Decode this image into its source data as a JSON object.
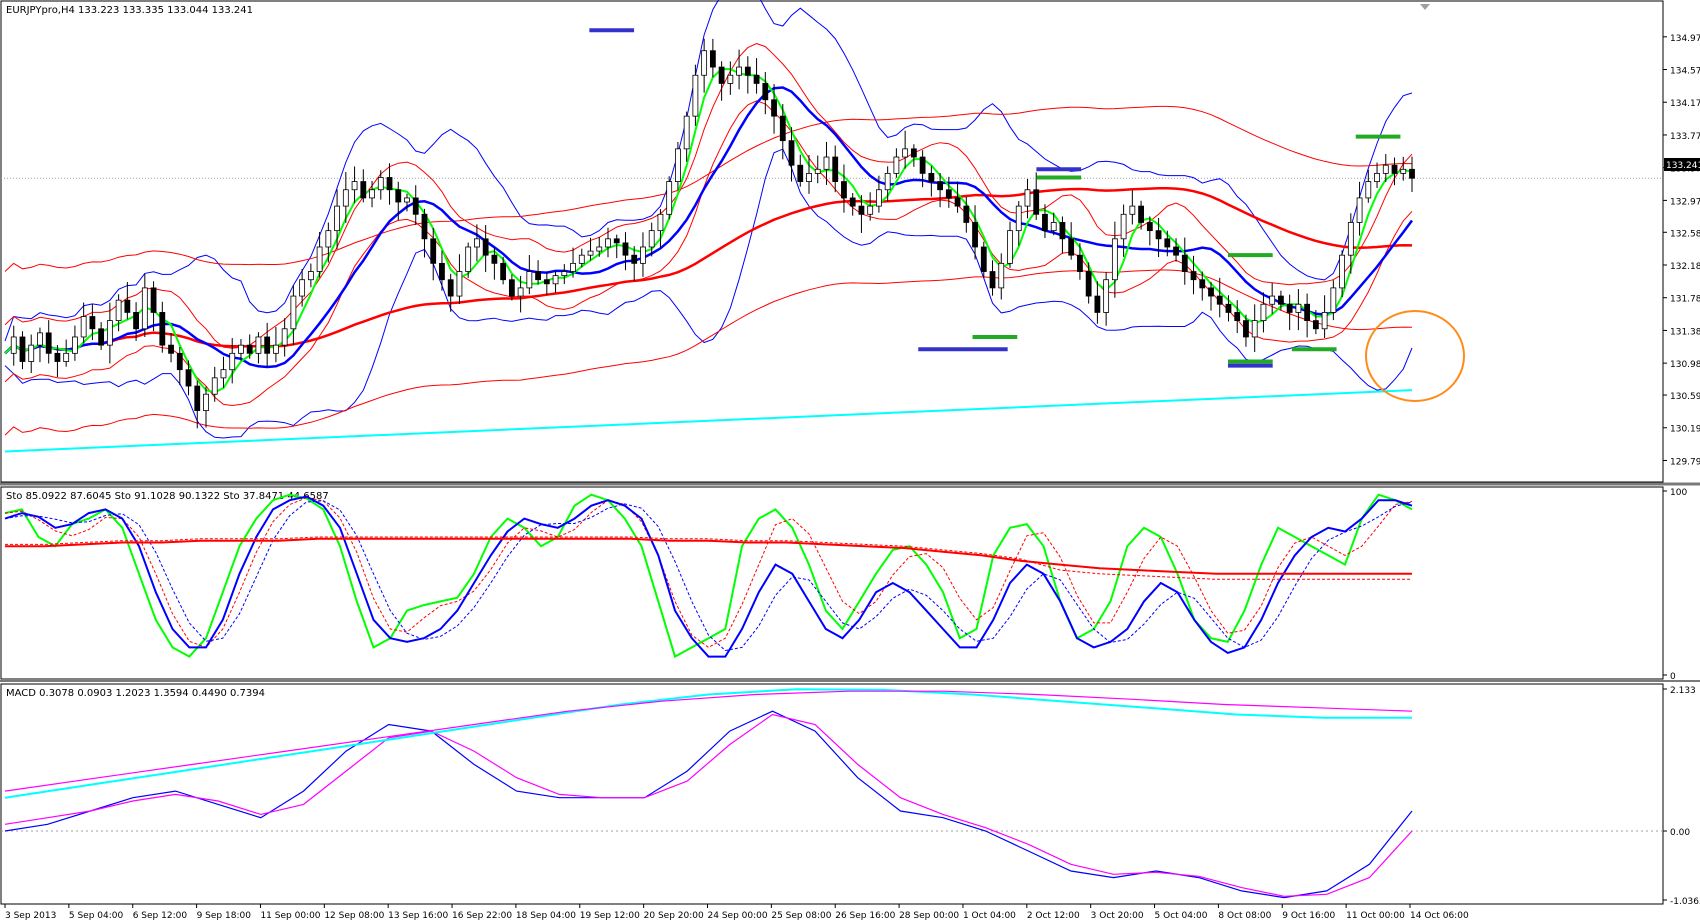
{
  "colors": {
    "frame": "#000000",
    "bull_fill": "#ffffff",
    "bear_fill": "#000000",
    "red_thin": "#ff0000",
    "red_thick": "#ff0000",
    "blue": "#0000ff",
    "green": "#00ff00",
    "cyan": "#00ffff",
    "magenta": "#ff00ff",
    "marker_blue": "#3333cc",
    "marker_green": "#22aa22",
    "circle": "#ff8c1a",
    "grid_dash": "#a0a0a0"
  },
  "chart_data": [
    {
      "panel": "price",
      "type": "candlestick",
      "header": "EURJPYpro,H4  133.223 133.335 133.044 133.241",
      "current_price_tag": "133.241",
      "ylim": [
        129.6,
        135.2
      ],
      "y_ticks": [
        "134.970",
        "134.570",
        "134.170",
        "133.770",
        "133.370",
        "132.970",
        "132.580",
        "132.180",
        "131.780",
        "131.380",
        "130.980",
        "130.590",
        "130.190",
        "129.790"
      ],
      "x_labels": [
        "3 Sep 2013",
        "5 Sep 04:00",
        "6 Sep 12:00",
        "9 Sep 18:00",
        "11 Sep 00:00",
        "12 Sep 08:00",
        "13 Sep 16:00",
        "16 Sep 22:00",
        "18 Sep 04:00",
        "19 Sep 12:00",
        "20 Sep 20:00",
        "24 Sep 00:00",
        "25 Sep 08:00",
        "26 Sep 16:00",
        "28 Sep 00:00",
        "1 Oct 04:00",
        "2 Oct 12:00",
        "3 Oct 20:00",
        "5 Oct 04:00",
        "8 Oct 08:00",
        "9 Oct 16:00",
        "11 Oct 00:00",
        "14 Oct 06:00"
      ],
      "candle_path": [
        131.1,
        131.3,
        131.0,
        131.2,
        131.35,
        131.1,
        131.0,
        131.1,
        131.3,
        131.55,
        131.4,
        131.2,
        131.5,
        131.75,
        131.6,
        131.4,
        131.9,
        131.6,
        131.2,
        131.1,
        130.9,
        130.7,
        130.4,
        130.6,
        130.8,
        130.9,
        131.1,
        131.2,
        131.1,
        131.3,
        131.1,
        131.2,
        131.4,
        131.8,
        132.0,
        132.1,
        132.4,
        132.6,
        132.9,
        133.1,
        133.2,
        133.0,
        133.1,
        133.25,
        133.1,
        132.95,
        133.0,
        132.8,
        132.5,
        132.2,
        132.0,
        131.8,
        132.1,
        132.4,
        132.5,
        132.3,
        132.2,
        132.0,
        131.8,
        131.9,
        132.1,
        132.0,
        131.95,
        132.05,
        132.1,
        132.2,
        132.3,
        132.35,
        132.4,
        132.5,
        132.45,
        132.3,
        132.2,
        132.4,
        132.6,
        132.8,
        133.2,
        133.6,
        134.0,
        134.5,
        134.8,
        134.6,
        134.4,
        134.5,
        134.6,
        134.5,
        134.4,
        134.2,
        134.0,
        133.7,
        133.4,
        133.2,
        133.3,
        133.35,
        133.5,
        133.2,
        133.0,
        132.9,
        132.8,
        132.9,
        133.1,
        133.3,
        133.5,
        133.6,
        133.5,
        133.3,
        133.2,
        133.1,
        133.0,
        132.9,
        132.7,
        132.4,
        132.1,
        131.9,
        132.2,
        132.6,
        132.9,
        133.1,
        132.8,
        132.6,
        132.7,
        132.5,
        132.3,
        132.1,
        131.8,
        131.6,
        132.0,
        132.5,
        132.8,
        132.9,
        132.7,
        132.6,
        132.5,
        132.4,
        132.3,
        132.1,
        132.0,
        131.9,
        131.8,
        131.7,
        131.6,
        131.5,
        131.3,
        131.5,
        131.7,
        131.8,
        131.7,
        131.6,
        131.7,
        131.5,
        131.4,
        131.6,
        131.9,
        132.3,
        132.7,
        133.0,
        133.2,
        133.3,
        133.4,
        133.3,
        133.35,
        133.241
      ],
      "indicators": {
        "ma_green_fast": "green",
        "ma_blue": "blue",
        "ma_red_slow": "red",
        "bollinger_blue": "blue",
        "envelopes_red": "red",
        "cyan_long_ma": "cyan"
      },
      "markers": [
        {
          "color": "blue",
          "price": 135.05,
          "from": "19 Sep 12:00",
          "to": "20 Sep 20:00"
        },
        {
          "color": "blue",
          "price": 131.15,
          "from": "28 Sep 00:00",
          "to": "2 Oct 12:00"
        },
        {
          "color": "green",
          "price": 131.3,
          "from": "1 Oct 04:00",
          "to": "2 Oct 12:00"
        },
        {
          "color": "blue",
          "price": 133.35,
          "from": "2 Oct 12:00",
          "to": "3 Oct 20:00"
        },
        {
          "color": "green",
          "price": 133.25,
          "from": "2 Oct 12:00",
          "to": "3 Oct 20:00"
        },
        {
          "color": "green",
          "price": 132.3,
          "from": "8 Oct 08:00",
          "to": "9 Oct 16:00"
        },
        {
          "color": "green",
          "price": 131.0,
          "from": "8 Oct 08:00",
          "to": "9 Oct 16:00"
        },
        {
          "color": "blue",
          "price": 130.95,
          "from": "8 Oct 08:00",
          "to": "9 Oct 16:00"
        },
        {
          "color": "green",
          "price": 131.15,
          "from": "9 Oct 16:00",
          "to": "11 Oct 00:00"
        },
        {
          "color": "green",
          "price": 133.75,
          "from": "11 Oct 00:00",
          "to": "14 Oct 06:00"
        }
      ],
      "annotation": "orange circle highlighting price near 131.0 at the right edge"
    },
    {
      "panel": "stochastic",
      "type": "line",
      "header": "Sto 85.0922 87.6045  Sto 91.1028 90.1322  Sto 37.8471 44.6587",
      "ylim": [
        0,
        100
      ],
      "y_ticks": [
        "100",
        "0"
      ],
      "series": [
        {
          "color": "green",
          "values": [
            88,
            90,
            75,
            70,
            82,
            85,
            90,
            80,
            55,
            30,
            15,
            10,
            20,
            45,
            70,
            85,
            95,
            98,
            96,
            90,
            70,
            40,
            15,
            20,
            35,
            38,
            40,
            42,
            55,
            75,
            85,
            80,
            70,
            75,
            92,
            98,
            95,
            85,
            70,
            40,
            10,
            15,
            20,
            25,
            70,
            85,
            90,
            80,
            60,
            35,
            25,
            40,
            55,
            68,
            70,
            60,
            45,
            20,
            25,
            65,
            80,
            82,
            70,
            40,
            20,
            25,
            40,
            70,
            80,
            75,
            55,
            30,
            20,
            18,
            35,
            60,
            80,
            75,
            70,
            65,
            60,
            85,
            98,
            95,
            90
          ]
        },
        {
          "color": "blue",
          "values": [
            85,
            88,
            86,
            80,
            82,
            88,
            90,
            85,
            70,
            45,
            25,
            15,
            15,
            30,
            55,
            75,
            90,
            95,
            97,
            92,
            80,
            55,
            30,
            20,
            18,
            20,
            25,
            35,
            50,
            65,
            78,
            85,
            82,
            80,
            85,
            92,
            95,
            92,
            85,
            65,
            35,
            20,
            10,
            10,
            25,
            45,
            60,
            55,
            40,
            25,
            20,
            30,
            45,
            50,
            45,
            35,
            25,
            15,
            15,
            30,
            50,
            60,
            55,
            40,
            20,
            15,
            18,
            25,
            40,
            50,
            45,
            30,
            18,
            12,
            15,
            30,
            50,
            65,
            75,
            80,
            78,
            85,
            95,
            95,
            92
          ]
        },
        {
          "color": "red",
          "values": [
            70,
            70,
            71,
            72,
            72,
            73,
            73,
            73,
            74,
            74,
            74,
            74,
            74,
            74,
            74,
            74,
            74,
            73,
            73,
            72,
            72,
            71,
            70,
            69,
            67,
            65,
            62,
            60,
            58,
            57,
            56,
            55,
            55,
            55,
            55,
            55,
            55
          ]
        }
      ]
    },
    {
      "panel": "macd",
      "type": "line",
      "header": "MACD 0.3078 0.0903 1.2023 1.3594 0.4490 0.7394",
      "y_ticks": [
        "2.133",
        "0.00",
        "-1.0363"
      ],
      "series": [
        {
          "color": "blue",
          "values": [
            0.0,
            0.1,
            0.3,
            0.5,
            0.6,
            0.4,
            0.2,
            0.6,
            1.2,
            1.6,
            1.5,
            1.0,
            0.6,
            0.5,
            0.5,
            0.5,
            0.9,
            1.5,
            1.8,
            1.5,
            0.8,
            0.3,
            0.2,
            0.0,
            -0.3,
            -0.6,
            -0.7,
            -0.6,
            -0.7,
            -0.9,
            -1.0,
            -0.9,
            -0.5,
            0.3
          ]
        },
        {
          "color": "magenta",
          "values": [
            0.1,
            0.2,
            0.3,
            0.45,
            0.55,
            0.45,
            0.25,
            0.4,
            0.9,
            1.4,
            1.5,
            1.2,
            0.8,
            0.55,
            0.5,
            0.5,
            0.75,
            1.3,
            1.75,
            1.6,
            1.0,
            0.5,
            0.25,
            0.05,
            -0.2,
            -0.5,
            -0.65,
            -0.62,
            -0.68,
            -0.85,
            -0.98,
            -0.95,
            -0.7,
            0.0
          ]
        },
        {
          "color": "cyan",
          "values": [
            0.5,
            0.7,
            0.9,
            1.1,
            1.3,
            1.5,
            1.7,
            1.9,
            2.05,
            2.13,
            2.12,
            2.05,
            1.95,
            1.85,
            1.75,
            1.7,
            1.7
          ]
        },
        {
          "color": "magenta",
          "values": [
            0.6,
            0.8,
            1.0,
            1.2,
            1.4,
            1.6,
            1.8,
            1.95,
            2.05,
            2.1,
            2.1,
            2.05,
            1.98,
            1.9,
            1.85,
            1.8
          ]
        }
      ]
    }
  ]
}
